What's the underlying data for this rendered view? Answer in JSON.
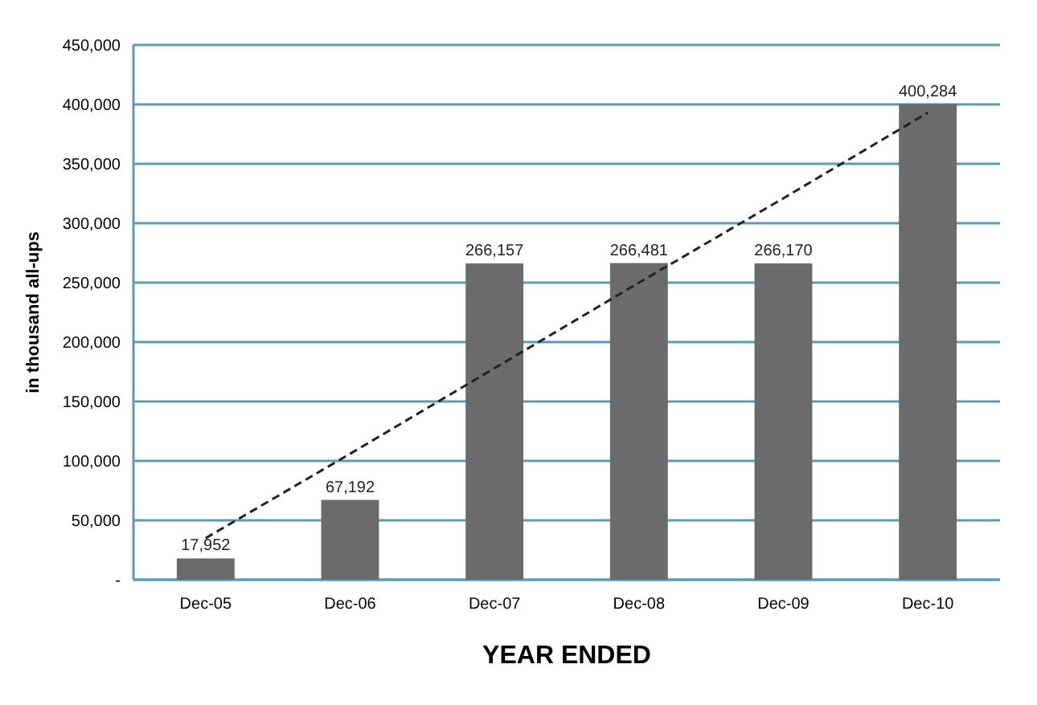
{
  "chart_data": {
    "type": "bar",
    "xlabel": "YEAR ENDED",
    "ylabel": "in thousand all-ups",
    "categories": [
      "Dec-05",
      "Dec-06",
      "Dec-07",
      "Dec-08",
      "Dec-09",
      "Dec-10"
    ],
    "series": [
      {
        "color": "#6b6b6b",
        "values": [
          17952,
          67192,
          266157,
          266481,
          266170,
          400284
        ],
        "value_labels": [
          "17,952",
          "67,192",
          "266,157",
          "266,481",
          "266,170",
          "400,284"
        ]
      },
      {
        "type": "line",
        "color": "#222222",
        "line_style": "dashed",
        "marker": "none",
        "values": [
          35000,
          106000,
          178000,
          250000,
          321000,
          393000
        ]
      }
    ],
    "ylim": [
      0,
      450000
    ],
    "yticks": [
      {
        "value": 0,
        "label": "-"
      },
      {
        "value": 50000,
        "label": "50,000"
      },
      {
        "value": 100000,
        "label": "100,000"
      },
      {
        "value": 150000,
        "label": "150,000"
      },
      {
        "value": 200000,
        "label": "200,000"
      },
      {
        "value": 250000,
        "label": "250,000"
      },
      {
        "value": 300000,
        "label": "300,000"
      },
      {
        "value": 350000,
        "label": "350,000"
      },
      {
        "value": 400000,
        "label": "400,000"
      },
      {
        "value": 450000,
        "label": "450,000"
      }
    ],
    "grid": "y",
    "legend": false
  }
}
